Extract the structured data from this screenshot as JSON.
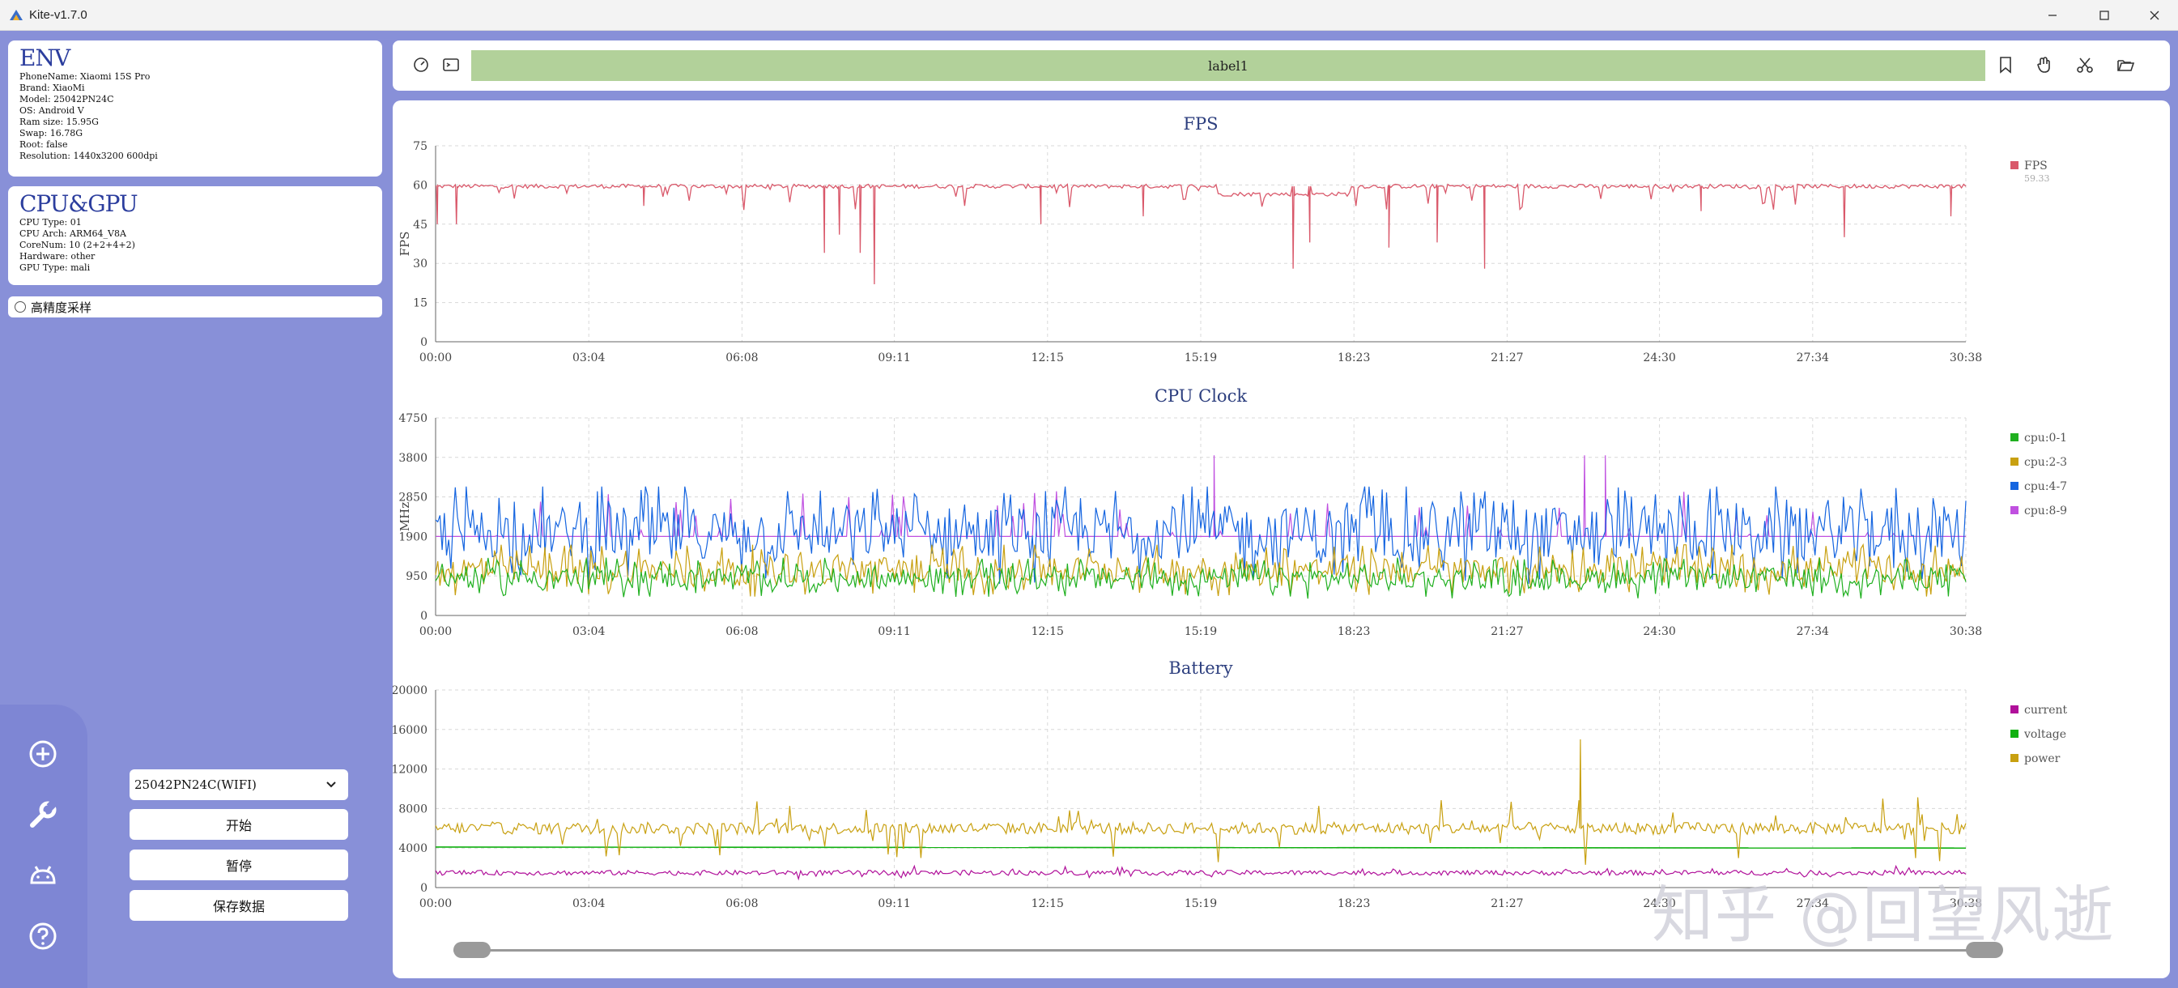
{
  "window": {
    "title": "Kite-v1.7.0",
    "controls": [
      "minimize-icon",
      "maximize-icon",
      "close-icon"
    ]
  },
  "env": {
    "heading": "ENV",
    "lines": [
      "PhoneName: Xiaomi 15S Pro",
      "Brand: XiaoMi",
      "Model: 25042PN24C",
      "OS: Android V",
      "Ram size: 15.95G",
      "Swap: 16.78G",
      "Root: false",
      "Resolution: 1440x3200 600dpi"
    ]
  },
  "cpugpu": {
    "heading": "CPU&GPU",
    "lines": [
      "CPU Type: 01",
      "CPU Arch: ARM64_V8A",
      "CoreNum: 10 (2+2+4+2)",
      "Hardware: other",
      "GPU Type: mali"
    ]
  },
  "sampling": {
    "label": "高精度采样",
    "checked": false
  },
  "sidebar": {
    "icons": [
      "add-circle-icon",
      "wrench-icon",
      "android-icon",
      "help-icon"
    ]
  },
  "device": {
    "selected": "25042PN24C(WIFI)"
  },
  "actions": {
    "start": "开始",
    "pause": "暂停",
    "save": "保存数据"
  },
  "toolbar": {
    "label": "label1",
    "left_icons": [
      "speedometer-icon",
      "terminal-icon"
    ],
    "right_icons": [
      "bookmark-icon",
      "hand-icon",
      "scissors-icon",
      "folder-open-icon"
    ]
  },
  "watermark": "知乎 @回望风逝",
  "colors": {
    "fps": "#d9586a",
    "cpu_0_1": "#20b020",
    "cpu_2_3": "#c8a010",
    "cpu_4_7": "#1565e0",
    "cpu_8_9": "#c050e0",
    "current": "#b0109a",
    "voltage": "#10b010",
    "power": "#c8a010",
    "label_bar": "#b2d19a",
    "axis_text": "#444444",
    "grid": "#d8d8d8"
  },
  "chart_data": [
    {
      "type": "line",
      "title": "FPS",
      "ylabel": "FPS",
      "xlabel": "",
      "x_range": [
        "00:00",
        "30:38"
      ],
      "x_ticks": [
        "00:00",
        "03:04",
        "06:08",
        "09:11",
        "12:15",
        "15:19",
        "18:23",
        "21:27",
        "24:30",
        "27:34",
        "30:38"
      ],
      "y_ticks": [
        0,
        15,
        30,
        45,
        60,
        75
      ],
      "ylim": [
        0,
        75
      ],
      "legend_position": "right",
      "series": [
        {
          "name": "FPS",
          "legend_value": "59.33",
          "baseline": 59.5,
          "dips": [
            {
              "t": "00:02",
              "v": 45
            },
            {
              "t": "00:25",
              "v": 45
            },
            {
              "t": "04:10",
              "v": 52
            },
            {
              "t": "07:47",
              "v": 34
            },
            {
              "t": "08:05",
              "v": 41
            },
            {
              "t": "08:30",
              "v": 34
            },
            {
              "t": "08:47",
              "v": 22
            },
            {
              "t": "12:07",
              "v": 45
            },
            {
              "t": "14:10",
              "v": 48
            },
            {
              "t": "17:10",
              "v": 28
            },
            {
              "t": "17:30",
              "v": 38
            },
            {
              "t": "19:05",
              "v": 36
            },
            {
              "t": "20:03",
              "v": 38
            },
            {
              "t": "21:00",
              "v": 28
            },
            {
              "t": "25:20",
              "v": 50
            },
            {
              "t": "28:12",
              "v": 40
            },
            {
              "t": "30:20",
              "v": 48
            }
          ]
        }
      ]
    },
    {
      "type": "line",
      "title": "CPU Clock",
      "ylabel": "MHz",
      "xlabel": "",
      "x_range": [
        "00:00",
        "30:38"
      ],
      "x_ticks": [
        "00:00",
        "03:04",
        "06:08",
        "09:11",
        "12:15",
        "15:19",
        "18:23",
        "21:27",
        "24:30",
        "27:34",
        "30:38"
      ],
      "y_ticks": [
        0,
        950,
        1900,
        2850,
        3800,
        4750
      ],
      "ylim": [
        0,
        4750
      ],
      "legend_position": "right",
      "series": [
        {
          "name": "cpu:0-1",
          "approx_range": [
            400,
            1400
          ],
          "typical": 900
        },
        {
          "name": "cpu:2-3",
          "approx_range": [
            400,
            1700
          ],
          "typical": 1100
        },
        {
          "name": "cpu:4-7",
          "approx_range": [
            600,
            3100
          ],
          "typical": 2000
        },
        {
          "name": "cpu:8-9",
          "approx_range": [
            1900,
            3900
          ],
          "typical": 1900,
          "peaks": [
            {
              "t": "15:35",
              "v": 3850
            },
            {
              "t": "23:00",
              "v": 3850
            },
            {
              "t": "23:25",
              "v": 3850
            }
          ]
        }
      ]
    },
    {
      "type": "line",
      "title": "Battery",
      "ylabel": "",
      "xlabel": "",
      "x_range": [
        "00:00",
        "30:38"
      ],
      "x_ticks": [
        "00:00",
        "03:04",
        "06:08",
        "09:11",
        "12:15",
        "15:19",
        "18:23",
        "21:27",
        "24:30",
        "27:34",
        "30:38"
      ],
      "y_ticks": [
        0,
        4000,
        8000,
        12000,
        16000,
        20000
      ],
      "ylim": [
        0,
        20000
      ],
      "legend_position": "right",
      "series": [
        {
          "name": "current",
          "typical": 1500,
          "approx_range": [
            800,
            2200
          ]
        },
        {
          "name": "voltage",
          "typical": 4100,
          "end_value": 4000
        },
        {
          "name": "power",
          "typical": 6000,
          "approx_range": [
            2000,
            10000
          ],
          "peaks": [
            {
              "t": "22:55",
              "v": 15000
            }
          ]
        }
      ]
    }
  ]
}
